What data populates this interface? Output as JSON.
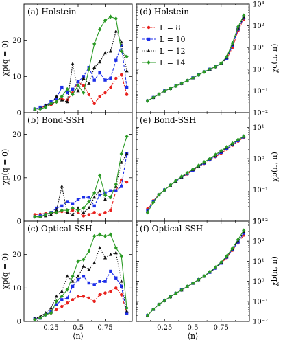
{
  "colors": {
    "L8": "#e8211d",
    "L10": "#1c2ee8",
    "L12": "#111111",
    "L14": "#2a9a24"
  },
  "legend": {
    "placement": "top-left of panel (d)",
    "entries": [
      {
        "label": "L = 8",
        "color_key": "L8",
        "marker": "circle",
        "dash": "dash-dot"
      },
      {
        "label": "L = 10",
        "color_key": "L10",
        "marker": "square",
        "dash": "dashed"
      },
      {
        "label": "L = 12",
        "color_key": "L12",
        "marker": "triangle",
        "dash": "dotted"
      },
      {
        "label": "L = 14",
        "color_key": "L14",
        "marker": "diamond",
        "dash": "solid"
      }
    ]
  },
  "x_axis": {
    "label": "⟨n⟩",
    "range": [
      0.0,
      1.0
    ],
    "ticks": [
      0.25,
      0.5,
      0.75
    ],
    "tick_labels": [
      "0.25",
      "0.5",
      "0.75"
    ]
  },
  "chart_data": [
    {
      "id": "a",
      "type": "line",
      "panel_label": "(a) Holstein",
      "ylabel": "χp(q = 0)",
      "ylabel_side": "left",
      "yscale": "linear",
      "ylim": [
        0,
        30
      ],
      "yticks": [
        0,
        10,
        20
      ],
      "ytick_labels": [
        "0",
        "10",
        "20"
      ],
      "x": [
        0.1,
        0.15,
        0.2,
        0.25,
        0.3,
        0.35,
        0.4,
        0.45,
        0.5,
        0.55,
        0.6,
        0.65,
        0.7,
        0.75,
        0.8,
        0.85,
        0.9,
        0.95
      ],
      "series": [
        {
          "name": "L = 8",
          "values": [
            1.0,
            1.3,
            1.8,
            2.2,
            3.0,
            3.8,
            3.5,
            5.5,
            8.5,
            7.5,
            5.0,
            2.5,
            4.5,
            5.5,
            7.0,
            9.5,
            10.5,
            5.0
          ]
        },
        {
          "name": "L = 10",
          "values": [
            1.0,
            1.5,
            2.0,
            3.0,
            4.0,
            7.0,
            5.5,
            6.5,
            8.5,
            10.0,
            12.5,
            9.0,
            11.0,
            9.0,
            9.5,
            14.5,
            18.5,
            7.0
          ]
        },
        {
          "name": "L = 12",
          "values": [
            1.0,
            1.2,
            2.0,
            2.5,
            4.5,
            3.5,
            3.0,
            13.5,
            6.0,
            9.5,
            8.0,
            12.5,
            14.0,
            16.5,
            17.0,
            22.5,
            19.5,
            11.5
          ]
        },
        {
          "name": "L = 14",
          "values": [
            1.0,
            1.0,
            1.5,
            2.5,
            3.0,
            4.5,
            6.5,
            5.0,
            7.5,
            5.5,
            12.0,
            19.0,
            23.0,
            25.5,
            26.5,
            26.0,
            17.0,
            15.5
          ]
        }
      ]
    },
    {
      "id": "b",
      "type": "line",
      "panel_label": "(b) Bond-SSH",
      "ylabel": "χp(q = 0)",
      "ylabel_side": "left",
      "yscale": "linear",
      "ylim": [
        0,
        25
      ],
      "yticks": [
        0,
        10,
        20
      ],
      "ytick_labels": [
        "0",
        "10",
        "20"
      ],
      "x": [
        0.1,
        0.15,
        0.2,
        0.25,
        0.3,
        0.35,
        0.4,
        0.45,
        0.5,
        0.55,
        0.6,
        0.65,
        0.7,
        0.75,
        0.8,
        0.85,
        0.9,
        0.95
      ],
      "series": [
        {
          "name": "L = 8",
          "values": [
            1.5,
            1.6,
            1.8,
            1.8,
            2.0,
            2.2,
            2.0,
            2.5,
            2.0,
            1.2,
            1.5,
            2.0,
            1.5,
            2.0,
            2.5,
            7.0,
            9.5,
            9.0
          ]
        },
        {
          "name": "L = 10",
          "values": [
            1.0,
            1.2,
            1.5,
            2.0,
            3.0,
            3.5,
            4.5,
            4.0,
            5.0,
            5.5,
            5.5,
            3.5,
            6.0,
            6.5,
            7.0,
            7.0,
            8.0,
            15.5
          ]
        },
        {
          "name": "L = 12",
          "values": [
            1.0,
            1.0,
            1.2,
            1.5,
            2.5,
            8.0,
            2.0,
            1.5,
            3.0,
            2.0,
            3.0,
            5.5,
            7.0,
            5.0,
            5.5,
            8.0,
            13.5,
            15.5
          ]
        },
        {
          "name": "L = 14",
          "values": [
            1.0,
            1.0,
            1.5,
            2.0,
            2.0,
            2.5,
            2.5,
            3.0,
            2.5,
            3.0,
            4.5,
            6.5,
            10.5,
            6.0,
            5.5,
            8.5,
            15.5,
            19.5
          ]
        }
      ]
    },
    {
      "id": "c",
      "type": "line",
      "panel_label": "(c) Optical-SSH",
      "ylabel": "χp(q = 0)",
      "ylabel_side": "left",
      "yscale": "linear",
      "ylim": [
        0,
        30
      ],
      "yticks": [
        0,
        10,
        20
      ],
      "ytick_labels": [
        "0",
        "10",
        "20"
      ],
      "x": [
        0.1,
        0.15,
        0.2,
        0.25,
        0.3,
        0.35,
        0.4,
        0.45,
        0.5,
        0.55,
        0.6,
        0.65,
        0.7,
        0.75,
        0.8,
        0.85,
        0.9,
        0.95
      ],
      "series": [
        {
          "name": "L = 8",
          "values": [
            0.8,
            1.0,
            2.0,
            2.5,
            3.5,
            4.5,
            5.5,
            6.5,
            7.5,
            7.5,
            7.0,
            6.0,
            8.0,
            8.5,
            9.0,
            10.0,
            8.0,
            2.5
          ]
        },
        {
          "name": "L = 10",
          "values": [
            0.8,
            1.0,
            2.0,
            3.0,
            5.0,
            6.5,
            7.0,
            10.5,
            12.5,
            13.5,
            11.5,
            11.0,
            12.0,
            12.0,
            15.0,
            13.0,
            10.5,
            2.5
          ]
        },
        {
          "name": "L = 12",
          "values": [
            0.8,
            1.5,
            2.5,
            4.0,
            7.5,
            9.0,
            13.5,
            12.0,
            13.5,
            16.5,
            15.5,
            17.5,
            22.0,
            19.0,
            20.0,
            20.5,
            12.0,
            3.0
          ]
        },
        {
          "name": "L = 14",
          "values": [
            0.5,
            1.0,
            2.0,
            2.5,
            6.0,
            7.5,
            9.5,
            13.5,
            18.0,
            18.5,
            21.0,
            25.5,
            26.0,
            25.5,
            26.0,
            22.0,
            19.5,
            4.0
          ]
        }
      ]
    },
    {
      "id": "d",
      "type": "line",
      "panel_label": "(d) Holstein",
      "ylabel": "χc(π, π)",
      "ylabel_side": "right",
      "yscale": "log",
      "ylim": [
        0.01,
        1000
      ],
      "yticks": [
        0.01,
        0.1,
        1,
        10,
        100,
        1000
      ],
      "ytick_labels": [
        "10⁻²",
        "10⁻¹",
        "10⁰",
        "10¹",
        "10²",
        "10³"
      ],
      "x": [
        0.1,
        0.15,
        0.2,
        0.25,
        0.3,
        0.35,
        0.4,
        0.45,
        0.5,
        0.55,
        0.6,
        0.65,
        0.7,
        0.75,
        0.8,
        0.85,
        0.9,
        0.95
      ],
      "series": [
        {
          "name": "L = 8",
          "values": [
            0.035,
            0.05,
            0.07,
            0.1,
            0.13,
            0.17,
            0.22,
            0.3,
            0.4,
            0.55,
            0.75,
            1.0,
            1.3,
            1.8,
            3.0,
            10,
            60,
            200
          ]
        },
        {
          "name": "L = 10",
          "values": [
            0.035,
            0.05,
            0.07,
            0.1,
            0.13,
            0.17,
            0.22,
            0.3,
            0.4,
            0.55,
            0.75,
            1.0,
            1.3,
            1.8,
            3.2,
            12,
            70,
            230
          ]
        },
        {
          "name": "L = 12",
          "values": [
            0.035,
            0.05,
            0.07,
            0.1,
            0.13,
            0.17,
            0.22,
            0.3,
            0.4,
            0.55,
            0.75,
            1.0,
            1.3,
            1.8,
            3.5,
            14,
            80,
            260
          ]
        },
        {
          "name": "L = 14",
          "values": [
            0.035,
            0.05,
            0.07,
            0.1,
            0.13,
            0.17,
            0.22,
            0.3,
            0.4,
            0.55,
            0.75,
            1.0,
            1.3,
            1.9,
            3.8,
            16,
            90,
            300
          ]
        }
      ]
    },
    {
      "id": "e",
      "type": "line",
      "panel_label": "(e) Bond-SSH",
      "ylabel": "χb(π, π)",
      "ylabel_side": "right",
      "yscale": "log",
      "ylim": [
        0.01,
        30
      ],
      "yticks": [
        0.01,
        0.1,
        1,
        10
      ],
      "ytick_labels": [
        "10⁻²",
        "10⁻¹",
        "10⁰",
        "10¹"
      ],
      "x": [
        0.1,
        0.15,
        0.2,
        0.25,
        0.3,
        0.35,
        0.4,
        0.45,
        0.5,
        0.55,
        0.6,
        0.65,
        0.7,
        0.75,
        0.8,
        0.85,
        0.9,
        0.95
      ],
      "series": [
        {
          "name": "L = 8",
          "values": [
            0.025,
            0.045,
            0.07,
            0.1,
            0.14,
            0.19,
            0.25,
            0.32,
            0.42,
            0.55,
            0.7,
            0.9,
            1.15,
            1.5,
            2.0,
            2.7,
            3.6,
            4.8
          ]
        },
        {
          "name": "L = 10",
          "values": [
            0.022,
            0.043,
            0.07,
            0.1,
            0.14,
            0.19,
            0.25,
            0.33,
            0.43,
            0.56,
            0.72,
            0.95,
            1.2,
            1.6,
            2.1,
            2.8,
            3.8,
            5.0
          ]
        },
        {
          "name": "L = 12",
          "values": [
            0.02,
            0.042,
            0.07,
            0.1,
            0.14,
            0.19,
            0.26,
            0.34,
            0.45,
            0.58,
            0.75,
            1.0,
            1.3,
            1.7,
            2.3,
            3.0,
            4.0,
            5.2
          ]
        },
        {
          "name": "L = 14",
          "values": [
            0.019,
            0.04,
            0.07,
            0.1,
            0.14,
            0.2,
            0.27,
            0.35,
            0.46,
            0.6,
            0.78,
            1.0,
            1.35,
            1.8,
            2.4,
            3.1,
            4.1,
            5.3
          ]
        }
      ]
    },
    {
      "id": "f",
      "type": "line",
      "panel_label": "(f) Optical-SSH",
      "ylabel": "χb(π, π)",
      "ylabel_side": "right",
      "yscale": "log",
      "ylim": [
        0.01,
        1000
      ],
      "yticks": [
        0.01,
        0.1,
        1,
        10,
        100,
        1000
      ],
      "ytick_labels": [
        "10⁻²",
        "10⁻¹",
        "10⁰",
        "10¹",
        "10²",
        "10³"
      ],
      "x": [
        0.1,
        0.15,
        0.2,
        0.25,
        0.3,
        0.35,
        0.4,
        0.45,
        0.5,
        0.55,
        0.6,
        0.65,
        0.7,
        0.75,
        0.8,
        0.85,
        0.9,
        0.95
      ],
      "series": [
        {
          "name": "L = 8",
          "values": [
            0.02,
            0.04,
            0.07,
            0.11,
            0.17,
            0.25,
            0.37,
            0.55,
            0.8,
            1.2,
            1.8,
            2.8,
            4.5,
            8,
            15,
            35,
            80,
            200
          ]
        },
        {
          "name": "L = 10",
          "values": [
            0.02,
            0.04,
            0.07,
            0.11,
            0.17,
            0.25,
            0.37,
            0.55,
            0.8,
            1.2,
            1.8,
            2.8,
            4.5,
            8,
            16,
            38,
            90,
            250
          ]
        },
        {
          "name": "L = 12",
          "values": [
            0.02,
            0.04,
            0.07,
            0.11,
            0.17,
            0.25,
            0.37,
            0.55,
            0.8,
            1.2,
            1.8,
            2.9,
            4.7,
            8.5,
            17,
            42,
            100,
            300
          ]
        },
        {
          "name": "L = 14",
          "values": [
            0.02,
            0.04,
            0.07,
            0.11,
            0.17,
            0.25,
            0.37,
            0.55,
            0.8,
            1.2,
            1.8,
            3.0,
            5.0,
            9,
            18,
            45,
            120,
            350
          ]
        }
      ]
    }
  ]
}
